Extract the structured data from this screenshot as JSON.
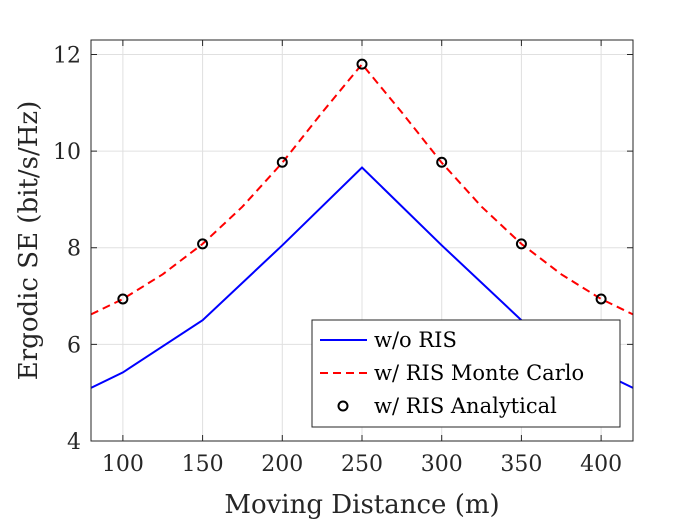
{
  "chart_data": {
    "type": "line",
    "title": "",
    "xlabel": "Moving Distance (m)",
    "ylabel": "Ergodic SE (bit/s/Hz)",
    "xlim": [
      80,
      420
    ],
    "ylim": [
      4,
      12.3
    ],
    "xticks": [
      100,
      150,
      200,
      250,
      300,
      350,
      400
    ],
    "yticks": [
      4,
      6,
      8,
      10,
      12
    ],
    "grid": true,
    "legend_position": "bottom-right",
    "series": [
      {
        "name": "w/o RIS",
        "style": "solid",
        "color": "#0000ff",
        "x": [
          80,
          100,
          150,
          200,
          250,
          300,
          350,
          400,
          420
        ],
        "y": [
          5.1,
          5.42,
          6.5,
          8.05,
          9.66,
          8.05,
          6.5,
          5.42,
          5.1
        ]
      },
      {
        "name": "w/ RIS Monte Carlo",
        "style": "dashed",
        "color": "#ff0000",
        "x": [
          80,
          100,
          125,
          150,
          175,
          200,
          225,
          250,
          275,
          300,
          325,
          350,
          375,
          400,
          420
        ],
        "y": [
          6.62,
          6.94,
          7.45,
          8.08,
          8.85,
          9.76,
          10.8,
          11.8,
          10.8,
          9.76,
          8.85,
          8.08,
          7.45,
          6.94,
          6.62
        ]
      },
      {
        "name": "w/ RIS Analytical",
        "style": "markers",
        "color": "#000000",
        "x": [
          100,
          150,
          200,
          250,
          300,
          350,
          400
        ],
        "y": [
          6.94,
          8.08,
          9.77,
          11.8,
          9.77,
          8.08,
          6.94
        ]
      }
    ]
  }
}
